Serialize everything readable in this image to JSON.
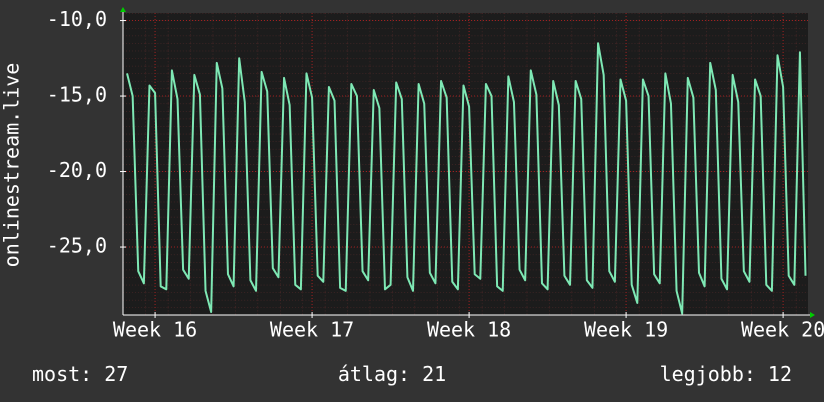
{
  "chart_data": {
    "type": "line",
    "ylabel": "onlinestream.live",
    "x": [
      -1.25,
      -1,
      -0.75,
      -0.5,
      -0.25,
      0,
      0.25,
      0.5,
      0.75,
      1,
      1.25,
      1.5,
      1.75,
      2,
      2.25,
      2.5,
      2.75,
      3,
      3.25,
      3.5,
      3.75,
      4,
      4.25,
      4.5,
      4.75,
      5,
      5.25,
      5.5,
      5.75,
      6,
      6.25,
      6.5,
      6.75,
      7,
      7.25,
      7.5,
      7.75,
      8,
      8.25,
      8.5,
      8.75,
      9,
      9.25,
      9.5,
      9.75,
      10,
      10.25,
      10.5,
      10.75,
      11,
      11.25,
      11.5,
      11.75,
      12,
      12.25,
      12.5,
      12.75,
      13,
      13.25,
      13.5,
      13.75,
      14,
      14.25,
      14.5,
      14.75,
      15,
      15.25,
      15.5,
      15.75,
      16,
      16.25,
      16.5,
      16.75,
      17,
      17.25,
      17.5,
      17.75,
      18,
      18.25,
      18.5,
      18.75,
      19,
      19.25,
      19.5,
      19.75,
      20,
      20.25,
      20.5,
      20.75,
      21,
      21.25,
      21.5,
      21.75,
      22,
      22.25,
      22.5,
      22.75,
      23,
      23.25,
      23.5,
      23.75,
      24,
      24.25,
      24.5,
      24.75,
      25,
      25.25,
      25.5,
      25.75,
      26,
      26.25,
      26.5,
      26.75,
      27,
      27.25,
      27.5,
      27.75,
      28,
      28.25,
      28.5,
      28.75,
      29
    ],
    "series": [
      {
        "color": "#7ee8b4",
        "values": [
          -13.5,
          -15.0,
          -26.6,
          -27.4,
          -14.3,
          -14.8,
          -27.6,
          -27.8,
          -13.3,
          -15.2,
          -26.5,
          -27.1,
          -13.6,
          -14.9,
          -27.9,
          -29.3,
          -12.8,
          -14.5,
          -26.8,
          -27.6,
          -12.5,
          -15.4,
          -27.2,
          -27.9,
          -13.4,
          -14.7,
          -26.4,
          -27.0,
          -13.8,
          -15.6,
          -27.5,
          -27.8,
          -13.5,
          -15.1,
          -26.9,
          -27.3,
          -14.4,
          -15.3,
          -27.7,
          -27.9,
          -14.2,
          -15.0,
          -26.6,
          -27.2,
          -14.6,
          -15.8,
          -27.8,
          -27.5,
          -14.1,
          -15.2,
          -27.0,
          -27.9,
          -14.2,
          -15.5,
          -26.7,
          -27.4,
          -14.0,
          -15.1,
          -27.3,
          -27.8,
          -14.3,
          -15.7,
          -26.8,
          -27.1,
          -14.2,
          -15.0,
          -27.6,
          -27.9,
          -13.7,
          -15.4,
          -26.5,
          -27.2,
          -13.3,
          -14.9,
          -27.4,
          -27.8,
          -14.0,
          -15.6,
          -26.9,
          -27.5,
          -14.0,
          -15.2,
          -27.2,
          -27.7,
          -11.5,
          -13.6,
          -26.6,
          -27.3,
          -13.9,
          -15.3,
          -27.5,
          -28.7,
          -13.9,
          -15.0,
          -26.8,
          -27.4,
          -13.5,
          -15.5,
          -27.9,
          -29.4,
          -13.8,
          -15.1,
          -26.7,
          -27.6,
          -12.8,
          -14.6,
          -27.1,
          -27.8,
          -13.6,
          -15.4,
          -26.6,
          -27.3,
          -13.9,
          -15.0,
          -27.5,
          -27.9,
          -12.3,
          -14.4,
          -26.9,
          -27.5,
          -12.1,
          -26.9
        ]
      }
    ],
    "xlim": [
      -1.43,
      29.11
    ],
    "xticks": [
      {
        "value": 0,
        "label": "Week 16"
      },
      {
        "value": 7,
        "label": "Week 17"
      },
      {
        "value": 14,
        "label": "Week 18"
      },
      {
        "value": 21,
        "label": "Week 19"
      },
      {
        "value": 28,
        "label": "Week 20"
      }
    ],
    "ylim": [
      -29.5,
      -9.5
    ],
    "yticks": [
      {
        "value": -10,
        "label": "-10,0"
      },
      {
        "value": -15,
        "label": "-15,0"
      },
      {
        "value": -20,
        "label": "-20,0"
      },
      {
        "value": -25,
        "label": "-25,0"
      }
    ],
    "grid": true,
    "stats": [
      {
        "label": "most:",
        "value": 27
      },
      {
        "label": "átlag:",
        "value": 21
      },
      {
        "label": "legjobb:",
        "value": 12
      }
    ]
  }
}
